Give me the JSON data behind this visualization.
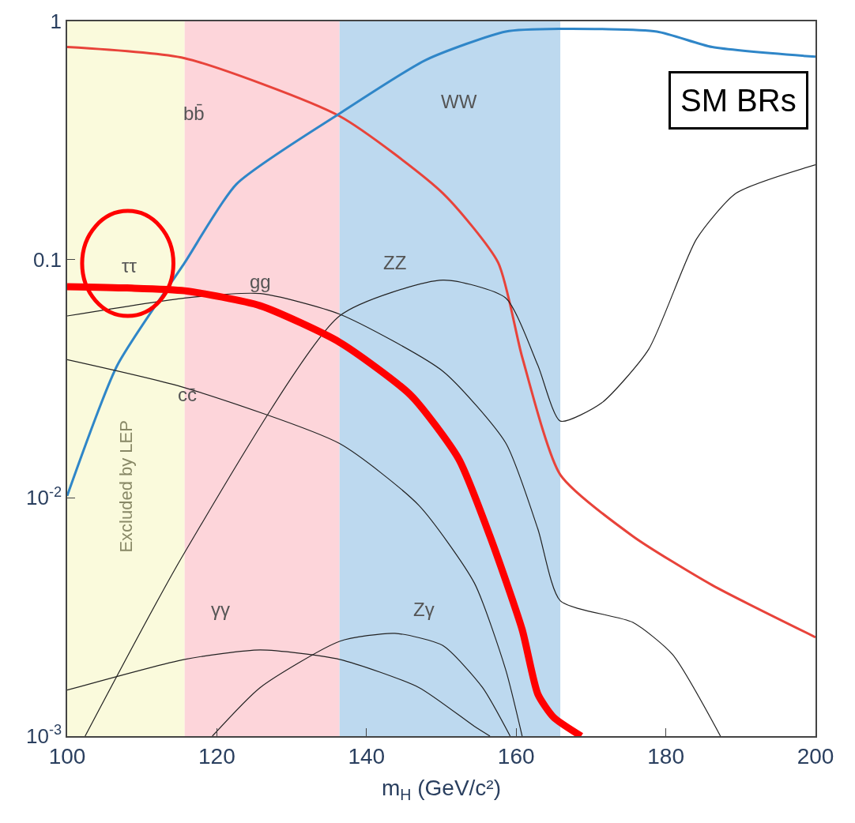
{
  "chart_data": {
    "type": "line",
    "xlabel": "m$_{H}$ (GeV/c²)",
    "xlim": [
      100,
      200
    ],
    "xticks": [
      100,
      120,
      140,
      160,
      180,
      200
    ],
    "ylim": [
      0.001,
      1
    ],
    "yticks": [
      1,
      0.1,
      {
        "value": 0.01,
        "label": "10$^{-2}$"
      },
      {
        "value": 0.001,
        "label": "10$^{-3}$"
      }
    ],
    "log": "y",
    "grid": false,
    "bands": [
      {
        "axis": "x",
        "from": 100,
        "to": 115.7,
        "label": "Excluded by LEP",
        "color": "#fafadc"
      },
      {
        "axis": "x",
        "from": 115.7,
        "to": 136.4,
        "color": "#fdd5da"
      },
      {
        "axis": "x",
        "from": 136.4,
        "to": 165.9,
        "color": "#bdd9ef"
      }
    ],
    "series": [
      {
        "color": "#e8433a",
        "x": [
          100,
          115.7,
          136.4,
          150.2,
          157.6,
          160.8,
          165.9,
          175.6,
          186.2,
          200
        ],
        "values": [
          0.78,
          0.7,
          0.4,
          0.19,
          0.097,
          0.039,
          0.0125,
          0.0069,
          0.0043,
          0.0026
        ]
      },
      {
        "color": "#2f86c8",
        "x": [
          100,
          106.7,
          115.7,
          122.6,
          136.4,
          148,
          158.6,
          165.9,
          178.8,
          186.2,
          200
        ],
        "values": [
          0.0102,
          0.036,
          0.097,
          0.207,
          0.41,
          0.69,
          0.906,
          0.93,
          0.906,
          0.78,
          0.71
        ]
      },
      {
        "color": "#222222",
        "x": [
          102.4,
          115.7,
          136.4,
          150.2,
          158.6,
          162.9,
          165.9,
          171.4,
          177.7,
          184.1,
          189.4,
          200
        ],
        "values": [
          0.001,
          0.0059,
          0.058,
          0.082,
          0.069,
          0.036,
          0.021,
          0.025,
          0.042,
          0.122,
          0.19,
          0.25
        ]
      },
      {
        "color": "#222222",
        "x": [
          100,
          115.7,
          125.8,
          136.4,
          150.2,
          158.6,
          162.9,
          165.9,
          175.6,
          180.9,
          187.3
        ],
        "values": [
          0.058,
          0.069,
          0.072,
          0.059,
          0.034,
          0.017,
          0.0074,
          0.0037,
          0.003,
          0.0022,
          0.001
        ]
      },
      {
        "color": "#222222",
        "x": [
          100,
          115.7,
          136.4,
          147,
          154.4,
          158.6,
          160.8
        ],
        "values": [
          0.038,
          0.029,
          0.0169,
          0.0093,
          0.0044,
          0.0019,
          0.001
        ]
      },
      {
        "color": "#222222",
        "x": [
          100,
          115.7,
          125.8,
          136.4,
          147,
          154.4,
          156.5
        ],
        "values": [
          0.00156,
          0.0021,
          0.0023,
          0.0021,
          0.0016,
          0.0011,
          0.001
        ]
      },
      {
        "color": "#222222",
        "x": [
          119.4,
          125.8,
          136.4,
          143.8,
          150.2,
          155.5,
          159.2
        ],
        "values": [
          0.001,
          0.0016,
          0.0025,
          0.0027,
          0.0024,
          0.0016,
          0.001
        ]
      },
      {
        "color": "#ff0000",
        "x": [
          100,
          108,
          115.7,
          125.8,
          136.4,
          145.9,
          152.3,
          156.5,
          160.8,
          162.9,
          165,
          168.7
        ],
        "values": [
          0.077,
          0.076,
          0.074,
          0.064,
          0.045,
          0.027,
          0.0146,
          0.0069,
          0.0028,
          0.0015,
          0.0012,
          0.001
        ]
      }
    ],
    "annotations": [
      {
        "text": "bb̄",
        "x": 115.7,
        "y": 0.7
      },
      {
        "text": "WW",
        "x": 148,
        "y": 0.69
      },
      {
        "text": "ττ",
        "x": 108,
        "y": 0.076
      },
      {
        "text": "gg",
        "x": 125.8,
        "y": 0.072
      },
      {
        "text": "ZZ",
        "x": 150.2,
        "y": 0.082
      },
      {
        "text": "cc̄",
        "x": 115.7,
        "y": 0.029
      },
      {
        "text": "γγ",
        "x": 125.8,
        "y": 0.0023
      },
      {
        "text": "Zγ",
        "x": 143.8,
        "y": 0.0027
      },
      "SM BRs"
    ]
  }
}
